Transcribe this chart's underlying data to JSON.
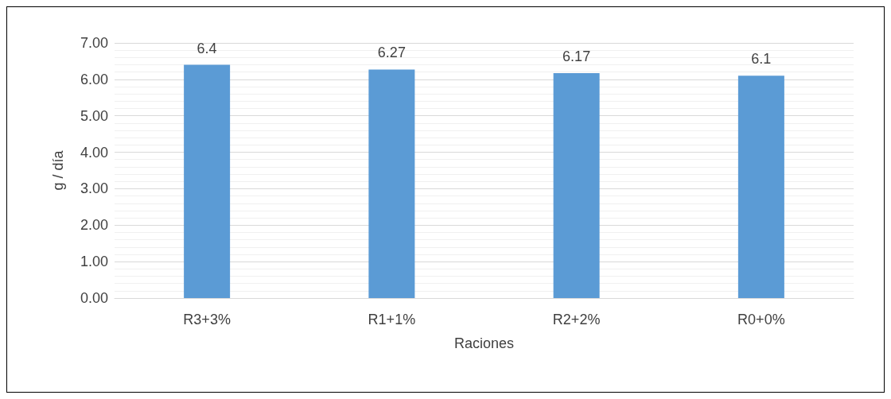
{
  "chart_data": {
    "type": "bar",
    "xlabel": "Raciones",
    "ylabel": "g / día",
    "categories": [
      "R3+3%",
      "R1+1%",
      "R2+2%",
      "R0+0%"
    ],
    "values": [
      6.4,
      6.27,
      6.17,
      6.1
    ],
    "color": "#5b9bd5",
    "data_labels": true,
    "ylim": [
      0,
      7
    ],
    "yticks": [
      {
        "value": 0,
        "label": "0.00"
      },
      {
        "value": 1,
        "label": "1.00"
      },
      {
        "value": 2,
        "label": "2.00"
      },
      {
        "value": 3,
        "label": "3.00"
      },
      {
        "value": 4,
        "label": "4.00"
      },
      {
        "value": 5,
        "label": "5.00"
      },
      {
        "value": 6,
        "label": "6.00"
      },
      {
        "value": 7,
        "label": "7.00"
      }
    ],
    "grid": true
  }
}
